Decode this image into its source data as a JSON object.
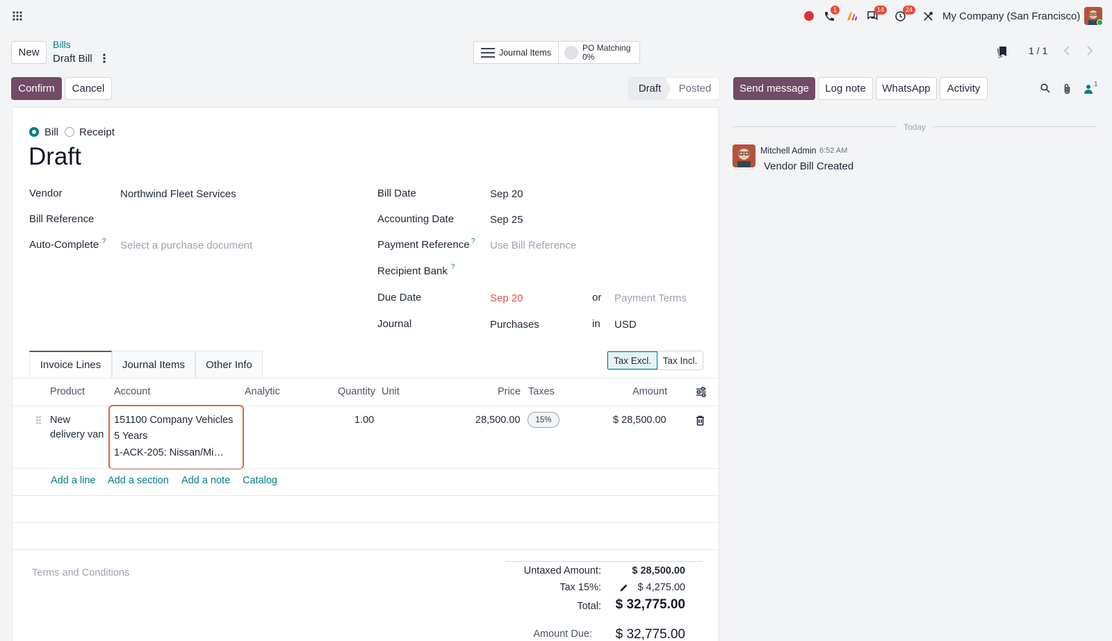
{
  "topbar": {
    "company": "My Company (San Francisco)",
    "badges": {
      "phone": "1",
      "chat": "14",
      "activity": "24"
    },
    "icons": [
      "apps-icon",
      "record-icon",
      "phone-icon",
      "ai-icon",
      "chat-icon",
      "clock-icon",
      "tools-icon",
      "avatar"
    ]
  },
  "control": {
    "new_label": "New",
    "breadcrumb_parent": "Bills",
    "record_name": "Draft Bill",
    "journal_items_label": "Journal Items",
    "po_matching_label": "PO Matching",
    "po_matching_value": "0%",
    "pager": "1 / 1"
  },
  "status": {
    "confirm_label": "Confirm",
    "cancel_label": "Cancel",
    "stages": [
      "Draft",
      "Posted"
    ],
    "active_stage": "Draft"
  },
  "form": {
    "type_options": [
      "Bill",
      "Receipt"
    ],
    "selected_type": "Bill",
    "title": "Draft",
    "left": [
      {
        "label": "Vendor",
        "value": "Northwind Fleet Services"
      },
      {
        "label": "Bill Reference",
        "value": ""
      },
      {
        "label": "Auto-Complete",
        "help": "?",
        "placeholder": "Select a purchase document"
      }
    ],
    "right": [
      {
        "label": "Bill Date",
        "value": "Sep 20"
      },
      {
        "label": "Accounting Date",
        "value": "Sep 25"
      },
      {
        "label": "Payment Reference",
        "help": "?",
        "placeholder": "Use Bill Reference"
      },
      {
        "label": "Recipient Bank",
        "help": "?"
      },
      {
        "label": "Due Date",
        "value": "Sep 20",
        "connector": "or",
        "placeholder": "Payment Terms"
      },
      {
        "label": "Journal",
        "value": "Purchases",
        "connector": "in",
        "currency": "USD"
      }
    ],
    "tabs": [
      "Invoice Lines",
      "Journal Items",
      "Other Info"
    ],
    "active_tab": "Invoice Lines",
    "tax_toggle": [
      "Tax Excl.",
      "Tax Incl."
    ],
    "tax_toggle_active": "Tax Excl."
  },
  "lines": {
    "headers": [
      "Product",
      "Account",
      "Analytic",
      "Quantity",
      "Unit",
      "Price",
      "Taxes",
      "Amount"
    ],
    "rows": [
      {
        "product_line1": "New",
        "product_line2": "delivery van",
        "account_line1": "151100 Company Vehicles",
        "account_line2": "5 Years",
        "account_line3": "1-ACK-205: Nissan/Mi…",
        "quantity": "1.00",
        "unit": "",
        "price": "28,500.00",
        "tax": "15%",
        "amount": "$ 28,500.00"
      }
    ],
    "add_links": [
      "Add a line",
      "Add a section",
      "Add a note",
      "Catalog"
    ]
  },
  "totals": {
    "terms_placeholder": "Terms and Conditions",
    "untaxed_label": "Untaxed Amount:",
    "untaxed_value": "$ 28,500.00",
    "tax_label": "Tax 15%:",
    "tax_value": "$ 4,275.00",
    "total_label": "Total:",
    "total_value": "$ 32,775.00",
    "due_label": "Amount Due:",
    "due_value": "$ 32,775.00"
  },
  "chatter": {
    "send_message": "Send message",
    "log_note": "Log note",
    "whatsapp": "WhatsApp",
    "activity": "Activity",
    "followers_count": "1",
    "date_separator": "Today",
    "messages": [
      {
        "author": "Mitchell Admin",
        "time": "6:52 AM",
        "body": "Vendor Bill Created"
      }
    ]
  },
  "colors": {
    "primary": "#714b67",
    "link": "#017e84",
    "danger": "#d9534f",
    "highlight_border": "#d9673c"
  }
}
